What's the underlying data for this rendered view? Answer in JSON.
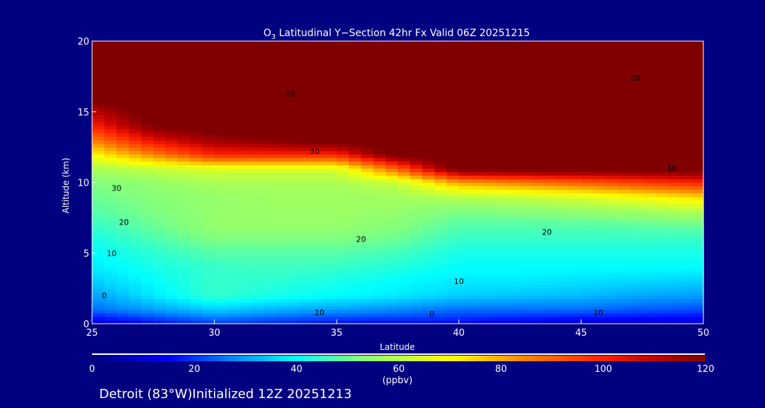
{
  "chart_data": {
    "type": "heatmap",
    "title_main": "O",
    "title_sub": "3",
    "title_rest": " Latitudinal Y−Section 42hr  Fx Valid 06Z 20251215",
    "xlabel": "Latitude",
    "ylabel": "Altitude (km)",
    "xlim": [
      25,
      50
    ],
    "ylim": [
      0,
      20
    ],
    "xticks": [
      "25",
      "30",
      "35",
      "40",
      "45",
      "50"
    ],
    "yticks": [
      "0",
      "5",
      "10",
      "15",
      "20"
    ],
    "lats": [
      25,
      27.5,
      30,
      32.5,
      35,
      37.5,
      40,
      42.5,
      45,
      47.5,
      50
    ],
    "alts": [
      0,
      1,
      2,
      3,
      4,
      5,
      6,
      7,
      8,
      9,
      10,
      11,
      12,
      13,
      14,
      15,
      16,
      17,
      18,
      19,
      20
    ],
    "values_by_lat": [
      [
        10,
        25,
        30,
        35,
        38,
        40,
        42,
        45,
        48,
        50,
        52,
        58,
        70,
        85,
        100,
        110,
        125,
        125,
        125,
        125,
        125
      ],
      [
        15,
        30,
        38,
        40,
        42,
        44,
        47,
        50,
        52,
        53,
        55,
        62,
        85,
        105,
        120,
        125,
        125,
        125,
        125,
        125,
        125
      ],
      [
        20,
        35,
        45,
        45,
        45,
        48,
        52,
        55,
        55,
        55,
        58,
        65,
        100,
        115,
        125,
        125,
        125,
        125,
        125,
        125,
        125
      ],
      [
        18,
        32,
        42,
        44,
        46,
        48,
        52,
        55,
        56,
        56,
        58,
        65,
        100,
        120,
        125,
        125,
        125,
        125,
        125,
        125,
        125
      ],
      [
        15,
        30,
        40,
        42,
        45,
        48,
        52,
        55,
        56,
        56,
        58,
        65,
        100,
        125,
        125,
        125,
        125,
        125,
        125,
        125,
        125
      ],
      [
        15,
        28,
        38,
        40,
        43,
        46,
        50,
        53,
        55,
        57,
        62,
        90,
        125,
        125,
        125,
        125,
        125,
        125,
        125,
        125,
        125
      ],
      [
        15,
        25,
        35,
        38,
        40,
        42,
        45,
        48,
        52,
        60,
        80,
        125,
        125,
        125,
        125,
        125,
        125,
        125,
        125,
        125,
        125
      ],
      [
        12,
        25,
        34,
        38,
        40,
        42,
        45,
        48,
        53,
        62,
        85,
        125,
        125,
        125,
        125,
        125,
        125,
        125,
        125,
        125,
        125
      ],
      [
        10,
        25,
        33,
        37,
        40,
        42,
        45,
        48,
        55,
        65,
        90,
        125,
        125,
        125,
        125,
        125,
        125,
        125,
        125,
        125,
        125
      ],
      [
        10,
        23,
        31,
        36,
        40,
        42,
        45,
        49,
        57,
        70,
        95,
        125,
        125,
        125,
        125,
        125,
        125,
        125,
        125,
        125,
        125
      ],
      [
        10,
        22,
        30,
        35,
        40,
        42,
        45,
        50,
        60,
        75,
        100,
        125,
        125,
        125,
        125,
        125,
        125,
        125,
        125,
        125,
        125
      ]
    ],
    "contour_labels": [
      {
        "text": "20",
        "lat": 26.3,
        "alt": 7.2
      },
      {
        "text": "30",
        "lat": 26.0,
        "alt": 9.6
      },
      {
        "text": "10",
        "lat": 25.8,
        "alt": 5.0
      },
      {
        "text": "0",
        "lat": 25.5,
        "alt": 2.0
      },
      {
        "text": "20",
        "lat": 36.0,
        "alt": 6.0
      },
      {
        "text": "30",
        "lat": 34.1,
        "alt": 12.2
      },
      {
        "text": "20",
        "lat": 33.1,
        "alt": 16.3
      },
      {
        "text": "10",
        "lat": 40.0,
        "alt": 3.0
      },
      {
        "text": "10",
        "lat": 34.3,
        "alt": 0.8
      },
      {
        "text": "0",
        "lat": 38.9,
        "alt": 0.7
      },
      {
        "text": "20",
        "lat": 43.6,
        "alt": 6.5
      },
      {
        "text": "10",
        "lat": 45.7,
        "alt": 0.8
      },
      {
        "text": "30",
        "lat": 48.7,
        "alt": 11.0
      },
      {
        "text": "20",
        "lat": 47.2,
        "alt": 17.4
      }
    ],
    "colorbar": {
      "ticks": [
        "0",
        "20",
        "40",
        "60",
        "80",
        "100",
        "120"
      ],
      "range": [
        0,
        120
      ],
      "units": "(ppbv)",
      "stops": [
        [
          0,
          "#000080"
        ],
        [
          15,
          "#0000ff"
        ],
        [
          27,
          "#0080ff"
        ],
        [
          40,
          "#00ffff"
        ],
        [
          52,
          "#80ff80"
        ],
        [
          70,
          "#ffff00"
        ],
        [
          85,
          "#ff8000"
        ],
        [
          100,
          "#ff2000"
        ],
        [
          110,
          "#c00000"
        ],
        [
          120,
          "#800000"
        ]
      ]
    }
  },
  "footer": "Detroit (83°W)Initialized 12Z 20251213"
}
